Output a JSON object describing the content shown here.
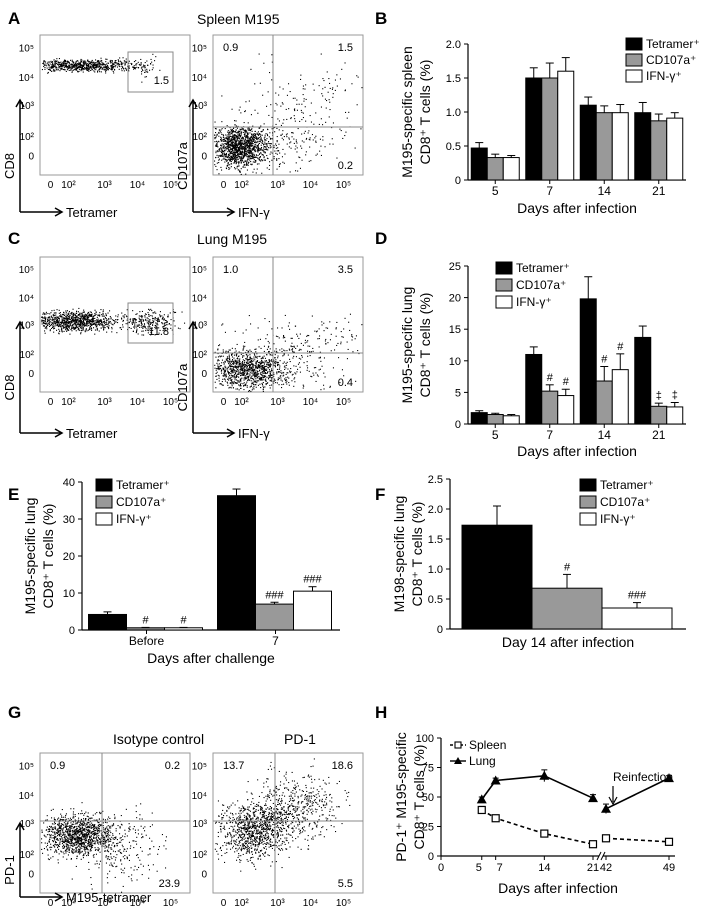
{
  "panels": [
    "A",
    "B",
    "C",
    "D",
    "E",
    "F",
    "G",
    "H"
  ],
  "flow_panels": {
    "A": {
      "title": "Spleen M195",
      "left": {
        "ylabel": "CD8",
        "xlabel": "Tetramer",
        "gate_value": "1.5"
      },
      "right": {
        "ylabel": "CD107a",
        "xlabel": "IFN-γ",
        "quadrants": {
          "ul": "0.9",
          "ur": "1.5",
          "lr": "0.2"
        }
      }
    },
    "C": {
      "title": "Lung M195",
      "left": {
        "ylabel": "CD8",
        "xlabel": "Tetramer",
        "gate_value": "11.8"
      },
      "right": {
        "ylabel": "CD107a",
        "xlabel": "IFN-γ",
        "quadrants": {
          "ul": "1.0",
          "ur": "3.5",
          "lr": "0.4"
        }
      }
    },
    "G": {
      "left": {
        "title": "Isotype control",
        "ylabel": "PD-1",
        "xlabel": "M195-tetramer",
        "quadrants": {
          "ul": "0.9",
          "ur": "0.2",
          "lr": "23.9"
        }
      },
      "right": {
        "title": "PD-1",
        "quadrants": {
          "ul": "13.7",
          "ur": "18.6",
          "lr": "5.5"
        }
      }
    },
    "tick_labels": {
      "y": [
        "10⁵",
        "10⁴",
        "10³",
        "10²",
        "0"
      ],
      "x": [
        "0",
        "10²",
        "10³",
        "10⁴",
        "10⁵"
      ]
    }
  },
  "chart_data": [
    {
      "panel": "B",
      "type": "bar",
      "ylabel": "M195-specific spleen CD8⁺ T cells (%)",
      "xlabel": "Days after infection",
      "categories": [
        "5",
        "7",
        "14",
        "21"
      ],
      "ylim": [
        0,
        2.0
      ],
      "yticks": [
        "0",
        "0.5",
        "1.0",
        "1.5",
        "2.0"
      ],
      "legend": "top-right",
      "series": [
        {
          "name": "Tetramer⁺",
          "color": "#000000",
          "values": [
            0.47,
            1.5,
            1.1,
            0.99
          ],
          "errors": [
            0.08,
            0.15,
            0.12,
            0.15
          ]
        },
        {
          "name": "CD107a⁺",
          "color": "#999999",
          "values": [
            0.33,
            1.5,
            0.99,
            0.87
          ],
          "errors": [
            0.05,
            0.22,
            0.1,
            0.1
          ]
        },
        {
          "name": "IFN-γ⁺",
          "color": "#ffffff",
          "values": [
            0.33,
            1.6,
            0.99,
            0.91
          ],
          "errors": [
            0.03,
            0.2,
            0.12,
            0.08
          ]
        }
      ],
      "annotations": []
    },
    {
      "panel": "D",
      "type": "bar",
      "ylabel": "M195-specific lung CD8⁺ T cells (%)",
      "xlabel": "Days after infection",
      "categories": [
        "5",
        "7",
        "14",
        "21"
      ],
      "ylim": [
        0,
        25
      ],
      "yticks": [
        "0",
        "5",
        "10",
        "15",
        "20",
        "25"
      ],
      "legend": "top-left",
      "series": [
        {
          "name": "Tetramer⁺",
          "color": "#000000",
          "values": [
            1.8,
            11.0,
            19.8,
            13.7
          ],
          "errors": [
            0.3,
            1.2,
            3.5,
            1.8
          ]
        },
        {
          "name": "CD107a⁺",
          "color": "#999999",
          "values": [
            1.5,
            5.2,
            6.8,
            2.8
          ],
          "errors": [
            0.2,
            1.0,
            2.3,
            0.5
          ]
        },
        {
          "name": "IFN-γ⁺",
          "color": "#ffffff",
          "values": [
            1.3,
            4.5,
            8.6,
            2.7
          ],
          "errors": [
            0.2,
            1.0,
            2.5,
            0.7
          ]
        }
      ],
      "annotations": [
        {
          "category": 1,
          "series": 1,
          "text": "#"
        },
        {
          "category": 1,
          "series": 2,
          "text": "#"
        },
        {
          "category": 2,
          "series": 1,
          "text": "#"
        },
        {
          "category": 2,
          "series": 2,
          "text": "#"
        },
        {
          "category": 3,
          "series": 1,
          "text": "‡"
        },
        {
          "category": 3,
          "series": 2,
          "text": "‡"
        }
      ]
    },
    {
      "panel": "E",
      "type": "bar",
      "ylabel": "M195-specific lung CD8⁺ T cells (%)",
      "xlabel": "Days after challenge",
      "categories": [
        "Before",
        "7"
      ],
      "ylim": [
        0,
        40
      ],
      "yticks": [
        "0",
        "10",
        "20",
        "30",
        "40"
      ],
      "legend": "top-left",
      "series": [
        {
          "name": "Tetramer⁺",
          "color": "#000000",
          "values": [
            4.2,
            36.3
          ],
          "errors": [
            0.7,
            1.8
          ]
        },
        {
          "name": "CD107a⁺",
          "color": "#999999",
          "values": [
            0.6,
            7.0
          ],
          "errors": [
            0.1,
            0.5
          ]
        },
        {
          "name": "IFN-γ⁺",
          "color": "#ffffff",
          "values": [
            0.6,
            10.5
          ],
          "errors": [
            0.1,
            1.2
          ]
        }
      ],
      "annotations": [
        {
          "category": 0,
          "series": 1,
          "text": "#"
        },
        {
          "category": 0,
          "series": 2,
          "text": "#"
        },
        {
          "category": 1,
          "series": 1,
          "text": "###"
        },
        {
          "category": 1,
          "series": 2,
          "text": "###"
        }
      ]
    },
    {
      "panel": "F",
      "type": "bar",
      "ylabel": "M198-specific lung CD8⁺ T cells (%)",
      "xlabel": "Day 14 after infection",
      "categories": [
        ""
      ],
      "ylim": [
        0,
        2.5
      ],
      "yticks": [
        "0",
        "0.5",
        "1.0",
        "1.5",
        "2.0",
        "2.5"
      ],
      "legend": "top-right",
      "series": [
        {
          "name": "Tetramer⁺",
          "color": "#000000",
          "values": [
            1.73
          ],
          "errors": [
            0.32
          ]
        },
        {
          "name": "CD107a⁺",
          "color": "#999999",
          "values": [
            0.68
          ],
          "errors": [
            0.23
          ]
        },
        {
          "name": "IFN-γ⁺",
          "color": "#ffffff",
          "values": [
            0.35
          ],
          "errors": [
            0.09
          ]
        }
      ],
      "annotations": [
        {
          "category": 0,
          "series": 1,
          "text": "#"
        },
        {
          "category": 0,
          "series": 2,
          "text": "###"
        }
      ]
    },
    {
      "panel": "H",
      "type": "line",
      "ylabel": "PD-1⁺ M195-specific CD8⁺ T cells (%)",
      "xlabel": "Days after infection",
      "xticks": [
        "0",
        "5",
        "7",
        "14",
        "21",
        "42",
        "49"
      ],
      "yticks": [
        "0",
        "25",
        "50",
        "75",
        "100"
      ],
      "ylim": [
        0,
        100
      ],
      "legend": "top-left",
      "annotation": "Reinfection",
      "series": [
        {
          "name": "Spleen",
          "style": "dashed",
          "marker": "open-square",
          "segments": [
            {
              "x": [
                5,
                7,
                14,
                21
              ],
              "y": [
                39,
                32,
                19,
                10
              ],
              "errors": [
                3,
                2,
                2,
                1
              ]
            },
            {
              "x": [
                42,
                49
              ],
              "y": [
                15,
                12
              ],
              "errors": [
                1,
                1
              ]
            }
          ]
        },
        {
          "name": "Lung",
          "style": "solid",
          "marker": "filled-triangle",
          "segments": [
            {
              "x": [
                5,
                7,
                14,
                21
              ],
              "y": [
                48,
                64,
                68,
                49
              ],
              "errors": [
                2,
                2,
                5,
                3
              ]
            },
            {
              "x": [
                42,
                49
              ],
              "y": [
                40,
                66
              ],
              "errors": [
                4,
                2
              ]
            }
          ]
        }
      ]
    }
  ]
}
